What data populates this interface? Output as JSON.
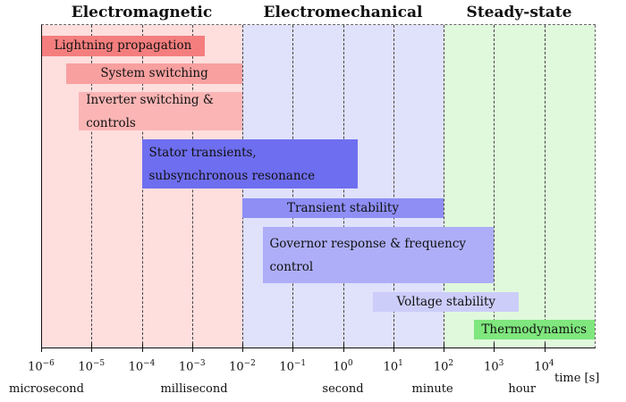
{
  "regions": [
    {
      "id": "electromagnetic",
      "title": "Electromagnetic",
      "from": -6,
      "to": -2,
      "color": "#ffdede"
    },
    {
      "id": "electromechanical",
      "title": "Electromechanical",
      "from": -2,
      "to": 2,
      "color": "#e0e1fb"
    },
    {
      "id": "steady-state",
      "title": "Steady-state",
      "from": 2,
      "to": 5.05,
      "color": "#e0f9dc"
    }
  ],
  "bars": [
    {
      "id": "lightning-propagation",
      "lines": [
        "Lightning propagation"
      ],
      "from": -6,
      "to": -2.75,
      "row": 0,
      "color": "#f47e7e"
    },
    {
      "id": "system-switching",
      "lines": [
        "System switching"
      ],
      "from": -5.5,
      "to": -2,
      "row": 1,
      "color": "#f8a0a0"
    },
    {
      "id": "inverter-switching",
      "lines": [
        "Inverter switching &",
        "controls"
      ],
      "from": -5.25,
      "to": -2,
      "row": 2,
      "color": "#fbb5b5"
    },
    {
      "id": "stator-transients",
      "lines": [
        "Stator transients,",
        "subsynchronous resonance"
      ],
      "from": -4,
      "to": 0.3,
      "row": 3,
      "color": "#6e6ef0"
    },
    {
      "id": "transient-stability",
      "lines": [
        "Transient stability"
      ],
      "from": -2,
      "to": 2,
      "row": 4,
      "color": "#8e8ef5"
    },
    {
      "id": "governor-response",
      "lines": [
        "Governor response & frequency",
        "control"
      ],
      "from": -1.6,
      "to": 3,
      "row": 5,
      "color": "#aeaef8"
    },
    {
      "id": "voltage-stability",
      "lines": [
        "Voltage stability"
      ],
      "from": 0.6,
      "to": 3.5,
      "row": 6,
      "color": "#cccdf9"
    },
    {
      "id": "thermodynamics",
      "lines": [
        "Thermodynamics"
      ],
      "from": 2.6,
      "to": 5,
      "row": 7,
      "color": "#7fe77d"
    }
  ],
  "axis": {
    "title": "time [s]",
    "ticks": [
      {
        "exp": -6,
        "base": "10",
        "power": "−6"
      },
      {
        "exp": -5,
        "base": "10",
        "power": "−5"
      },
      {
        "exp": -4,
        "base": "10",
        "power": "−4"
      },
      {
        "exp": -3,
        "base": "10",
        "power": "−3"
      },
      {
        "exp": -2,
        "base": "10",
        "power": "−2"
      },
      {
        "exp": -1,
        "base": "10",
        "power": "−1"
      },
      {
        "exp": 0,
        "base": "10",
        "power": "0"
      },
      {
        "exp": 1,
        "base": "10",
        "power": "1"
      },
      {
        "exp": 2,
        "base": "10",
        "power": "2"
      },
      {
        "exp": 3,
        "base": "10",
        "power": "3"
      },
      {
        "exp": 4,
        "base": "10",
        "power": "4"
      }
    ],
    "units": [
      {
        "id": "microsecond",
        "label": "microsecond",
        "at": -6
      },
      {
        "id": "millisecond",
        "label": "millisecond",
        "at": -3
      },
      {
        "id": "second",
        "label": "second",
        "at": 0
      },
      {
        "id": "minute",
        "label": "minute",
        "at": 1.78
      },
      {
        "id": "hour",
        "label": "hour",
        "at": 3.56
      }
    ]
  }
}
